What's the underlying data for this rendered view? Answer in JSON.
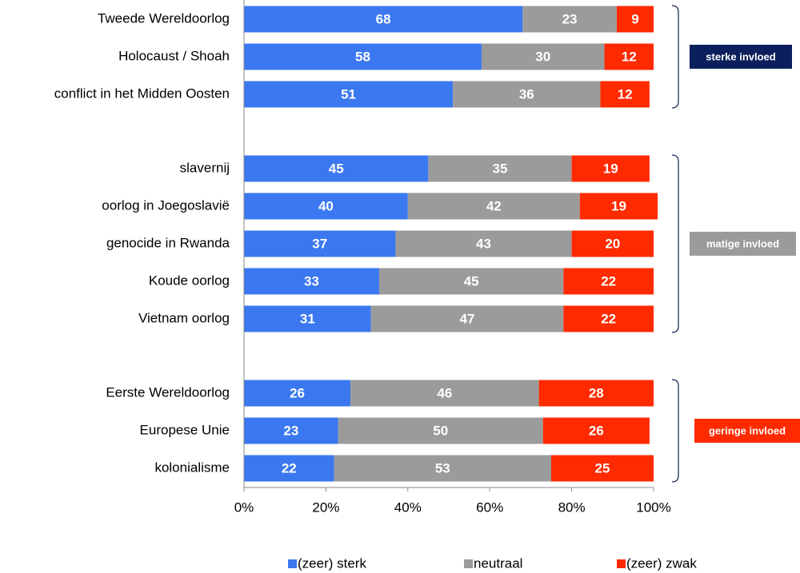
{
  "chart_data": {
    "type": "stacked-bar-horizontal",
    "categories": [
      "Tweede Wereldoorlog",
      "Holocaust / Shoah",
      "conflict in het Midden Oosten",
      "slavernij",
      "oorlog in Joegoslavië",
      "genocide in Rwanda",
      "Koude oorlog",
      "Vietnam oorlog",
      "Eerste Wereldoorlog",
      "Europese Unie",
      "kolonialisme"
    ],
    "series": [
      {
        "name": "(zeer) sterk",
        "color": "#3b78f0",
        "values": [
          68,
          58,
          51,
          45,
          40,
          37,
          33,
          31,
          26,
          23,
          22
        ]
      },
      {
        "name": "neutraal",
        "color": "#9b9b9b",
        "values": [
          23,
          30,
          36,
          35,
          42,
          43,
          45,
          47,
          46,
          50,
          53
        ]
      },
      {
        "name": "(zeer) zwak",
        "color": "#ff2a00",
        "values": [
          9,
          12,
          12,
          19,
          19,
          20,
          22,
          22,
          28,
          26,
          25
        ]
      }
    ],
    "groups": [
      {
        "label": "sterke invloed",
        "color": "#0b1f5c"
      },
      {
        "label": "matige invloed",
        "color": "#9b9b9b"
      },
      {
        "label": "geringe invloed",
        "color": "#ff2a00"
      }
    ],
    "xlim": [
      0,
      100
    ],
    "xticks": [
      {
        "value": 0,
        "label": "0%"
      },
      {
        "value": 20,
        "label": "20%"
      },
      {
        "value": 40,
        "label": "40%"
      },
      {
        "value": 60,
        "label": "60%"
      },
      {
        "value": 80,
        "label": "80%"
      },
      {
        "value": 100,
        "label": "100%"
      }
    ]
  }
}
